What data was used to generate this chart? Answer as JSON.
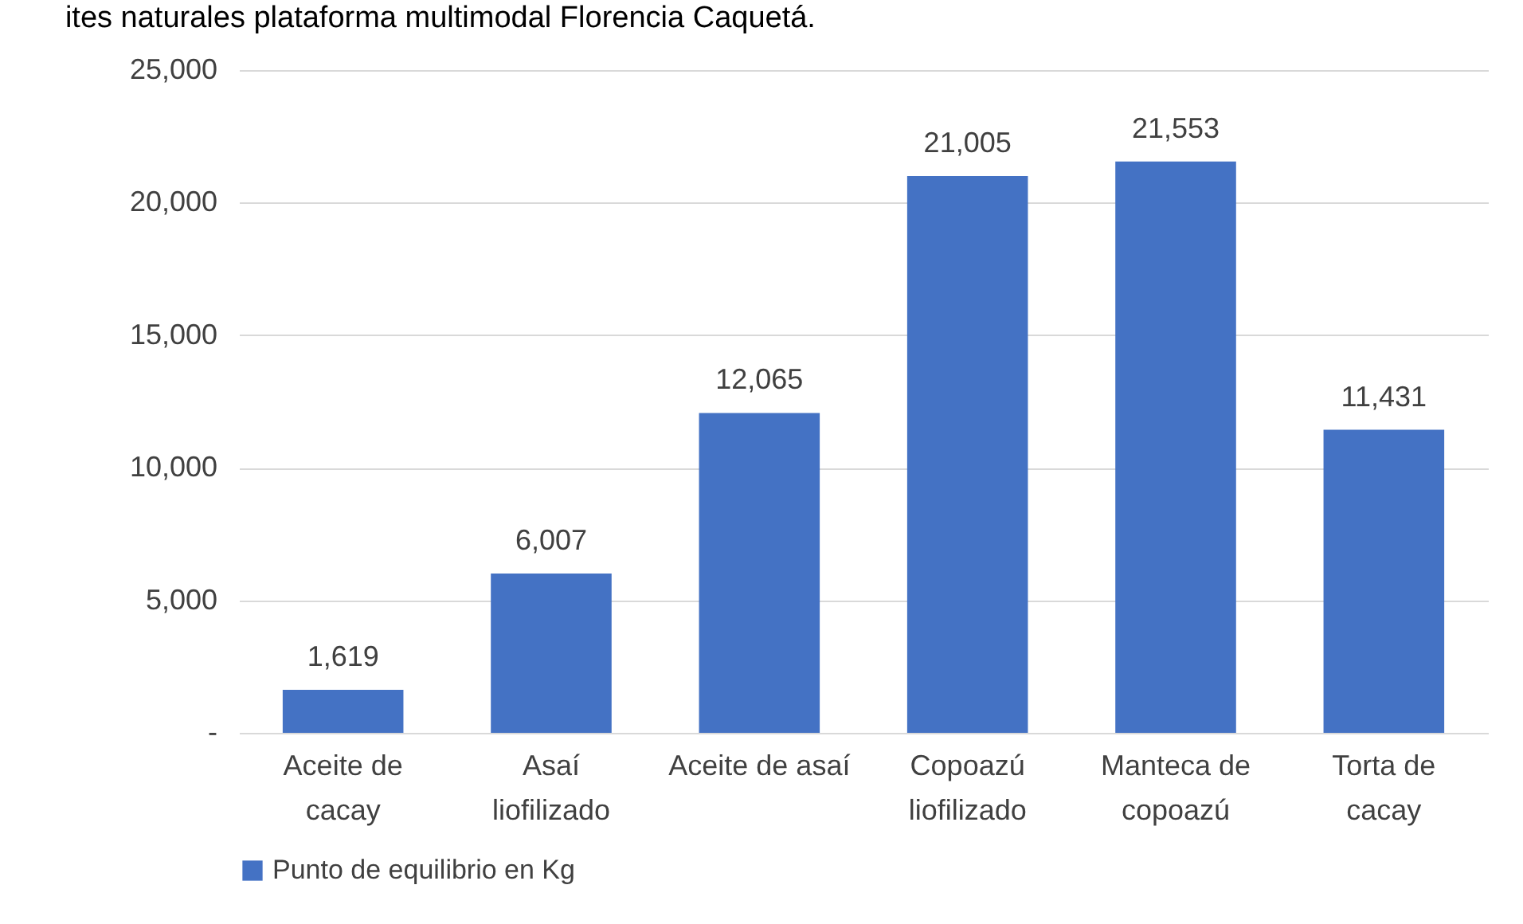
{
  "chart_data": {
    "type": "bar",
    "title": "ites naturales plataforma multimodal Florencia Caquetá.",
    "categories": [
      "Aceite de cacay",
      "Asaí liofilizado",
      "Aceite de asaí",
      "Copoazú liofilizado",
      "Manteca de copoazú",
      "Torta de cacay"
    ],
    "series": [
      {
        "name": "Punto de equilibrio en Kg",
        "color": "#4472c4",
        "values": [
          1619,
          6007,
          12065,
          21005,
          21553,
          11431
        ],
        "value_labels": [
          "1,619",
          "6,007",
          "12,065",
          "21,005",
          "21,553",
          "11,431"
        ]
      }
    ],
    "ylim": [
      0,
      25000
    ],
    "yticks": [
      {
        "value": 0,
        "label": "-"
      },
      {
        "value": 5000,
        "label": "5,000"
      },
      {
        "value": 10000,
        "label": "10,000"
      },
      {
        "value": 15000,
        "label": "15,000"
      },
      {
        "value": 20000,
        "label": "20,000"
      },
      {
        "value": 25000,
        "label": "25,000"
      }
    ],
    "grid": "y",
    "legend": "bottom"
  }
}
